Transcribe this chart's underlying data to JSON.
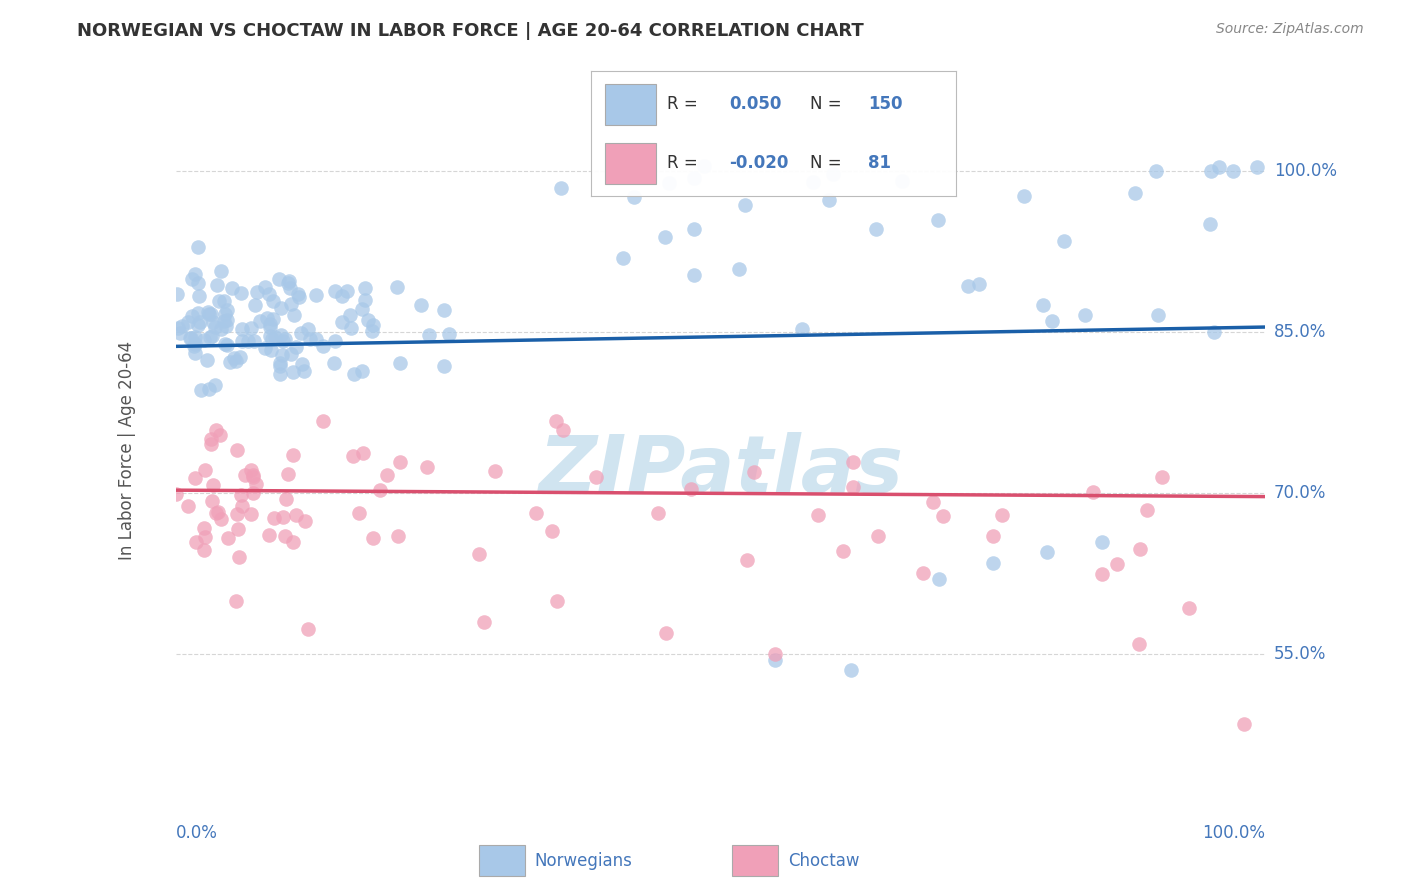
{
  "title": "NORWEGIAN VS CHOCTAW IN LABOR FORCE | AGE 20-64 CORRELATION CHART",
  "source": "Source: ZipAtlas.com",
  "ylabel": "In Labor Force | Age 20-64",
  "xlim": [
    0.0,
    1.0
  ],
  "ylim": [
    0.42,
    1.06
  ],
  "yticks": [
    0.55,
    0.7,
    0.85,
    1.0
  ],
  "ytick_labels": [
    "55.0%",
    "70.0%",
    "85.0%",
    "100.0%"
  ],
  "xtick_labels": [
    "0.0%",
    "100.0%"
  ],
  "norwegian_R": 0.05,
  "norwegian_N": 150,
  "choctaw_R": -0.02,
  "choctaw_N": 81,
  "norwegian_color": "#a8c8e8",
  "choctaw_color": "#f0a0b8",
  "norwegian_line_color": "#1a5fa8",
  "choctaw_line_color": "#d94f6e",
  "norwegian_line_start_y": 0.837,
  "norwegian_line_end_y": 0.855,
  "choctaw_line_start_y": 0.703,
  "choctaw_line_end_y": 0.697,
  "watermark": "ZIPatlas",
  "watermark_color": "#d0e4f0",
  "background_color": "#ffffff",
  "grid_color": "#cccccc",
  "title_color": "#333333",
  "label_color": "#4477bb",
  "title_fontsize": 13,
  "tick_fontsize": 12,
  "ylabel_fontsize": 12,
  "legend_fontsize": 12
}
